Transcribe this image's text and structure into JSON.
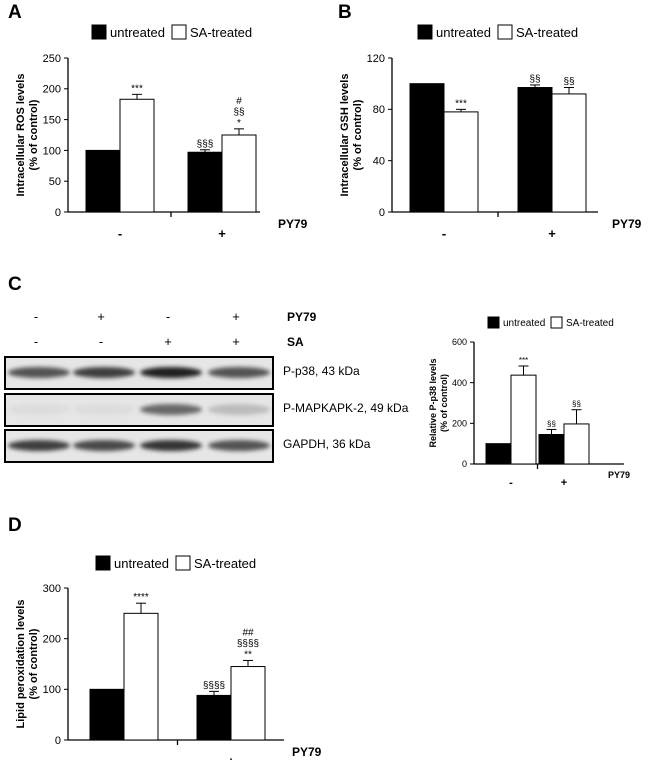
{
  "panels": {
    "A": "A",
    "B": "B",
    "C": "C",
    "D": "D"
  },
  "legend": {
    "untreated": "untreated",
    "treated": "SA-treated"
  },
  "colors": {
    "untreated": "#000000",
    "treated": "#ffffff"
  },
  "chart_data": [
    {
      "id": "A",
      "type": "bar",
      "ylabel": [
        "Intracellular ROS levels",
        "(% of control)"
      ],
      "xlabel": "PY79",
      "categories": [
        "-",
        "+"
      ],
      "ylim": [
        0,
        250
      ],
      "yticks": [
        0,
        50,
        100,
        150,
        200,
        250
      ],
      "series": [
        {
          "name": "untreated",
          "values": [
            100,
            97
          ],
          "errors": [
            0,
            4
          ],
          "annotations": [
            "",
            "§§§"
          ]
        },
        {
          "name": "SA-treated",
          "values": [
            183,
            125
          ],
          "errors": [
            8,
            10
          ],
          "annotations": [
            "***",
            "#|§§|*"
          ]
        }
      ]
    },
    {
      "id": "B",
      "type": "bar",
      "ylabel": [
        "Intracellular GSH levels",
        "(% of control)"
      ],
      "xlabel": "PY79",
      "categories": [
        "-",
        "+"
      ],
      "ylim": [
        0,
        120
      ],
      "yticks": [
        0,
        40,
        80,
        120
      ],
      "series": [
        {
          "name": "untreated",
          "values": [
            100,
            97
          ],
          "errors": [
            0,
            2
          ],
          "annotations": [
            "",
            "§§"
          ]
        },
        {
          "name": "SA-treated",
          "values": [
            78,
            92
          ],
          "errors": [
            2,
            5
          ],
          "annotations": [
            "***",
            "§§"
          ]
        }
      ]
    },
    {
      "id": "C",
      "type": "bar",
      "ylabel": [
        "Relative P-p38 levels",
        "(% of control)"
      ],
      "xlabel": "PY79",
      "categories": [
        "-",
        "+"
      ],
      "ylim": [
        0,
        600
      ],
      "yticks": [
        0,
        200,
        400,
        600
      ],
      "series": [
        {
          "name": "untreated",
          "values": [
            100,
            145
          ],
          "errors": [
            0,
            25
          ],
          "annotations": [
            "",
            "§§"
          ]
        },
        {
          "name": "SA-treated",
          "values": [
            437,
            197
          ],
          "errors": [
            45,
            70
          ],
          "annotations": [
            "***",
            "§§"
          ]
        }
      ]
    },
    {
      "id": "D",
      "type": "bar",
      "ylabel": [
        "Lipid peroxidation levels",
        "(% of control)"
      ],
      "xlabel": "PY79",
      "categories": [
        "-",
        "+"
      ],
      "ylim": [
        0,
        300
      ],
      "yticks": [
        0,
        100,
        200,
        300
      ],
      "series": [
        {
          "name": "untreated",
          "values": [
            100,
            88
          ],
          "errors": [
            0,
            8
          ],
          "annotations": [
            "",
            "§§§§"
          ]
        },
        {
          "name": "SA-treated",
          "values": [
            250,
            145
          ],
          "errors": [
            20,
            12
          ],
          "annotations": [
            "****",
            "##|§§§§|**"
          ]
        }
      ]
    }
  ],
  "blot": {
    "conditions": [
      {
        "label": "PY79",
        "signs": [
          "-",
          "+",
          "-",
          "+"
        ]
      },
      {
        "label": "SA",
        "signs": [
          "-",
          "-",
          "+",
          "+"
        ]
      }
    ],
    "bands": [
      {
        "label": "P-p38, 43 kDa",
        "intensities": [
          0.7,
          0.8,
          0.95,
          0.7
        ]
      },
      {
        "label": "P-MAPKAPK-2,  49 kDa",
        "intensities": [
          0.05,
          0.05,
          0.6,
          0.2
        ]
      },
      {
        "label": "GAPDH, 36 kDa",
        "intensities": [
          0.8,
          0.75,
          0.85,
          0.7
        ]
      }
    ]
  }
}
